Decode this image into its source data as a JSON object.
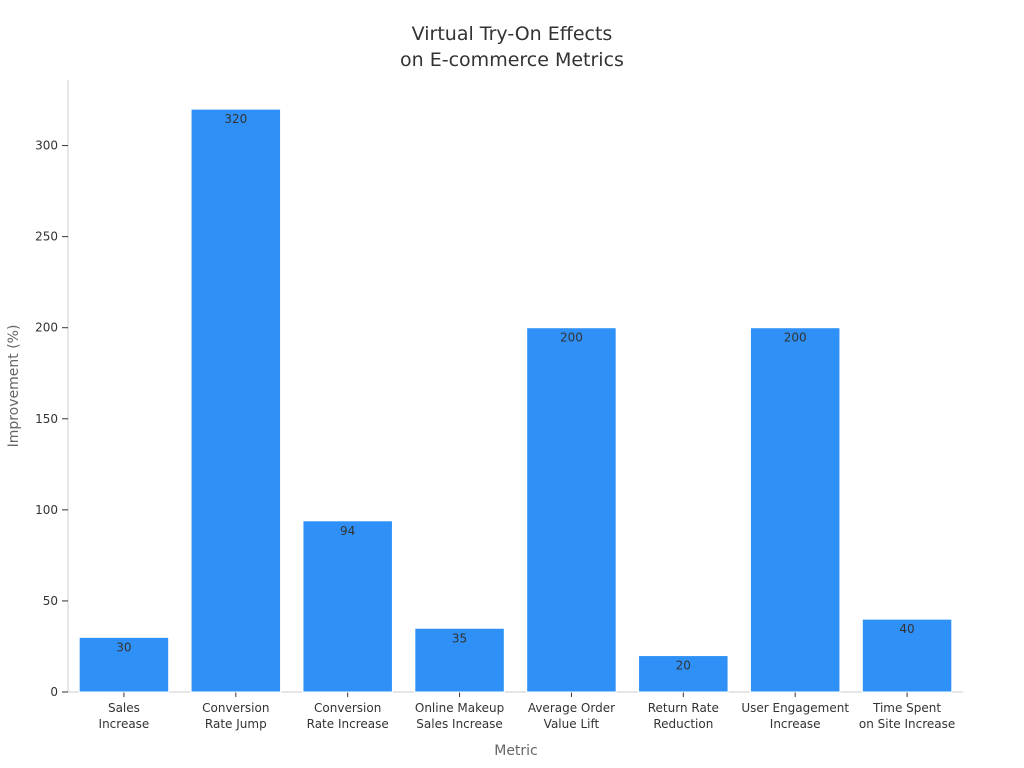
{
  "chart_data": {
    "type": "bar",
    "title_lines": [
      "Virtual Try-On Effects",
      "on E-commerce Metrics"
    ],
    "xlabel": "Metric",
    "ylabel": "Improvement (%)",
    "categories": [
      [
        "Sales",
        "Increase"
      ],
      [
        "Conversion",
        "Rate Jump"
      ],
      [
        "Conversion",
        "Rate Increase"
      ],
      [
        "Online Makeup",
        "Sales Increase"
      ],
      [
        "Average Order",
        "Value Lift"
      ],
      [
        "Return Rate",
        "Reduction"
      ],
      [
        "User Engagement",
        "Increase"
      ],
      [
        "Time Spent",
        "on Site Increase"
      ]
    ],
    "values": [
      30,
      320,
      94,
      35,
      200,
      20,
      200,
      40
    ],
    "ylim": [
      0,
      336
    ],
    "yticks": [
      0,
      50,
      100,
      150,
      200,
      250,
      300
    ],
    "grid": false,
    "bar_color": "#2f91f8"
  }
}
